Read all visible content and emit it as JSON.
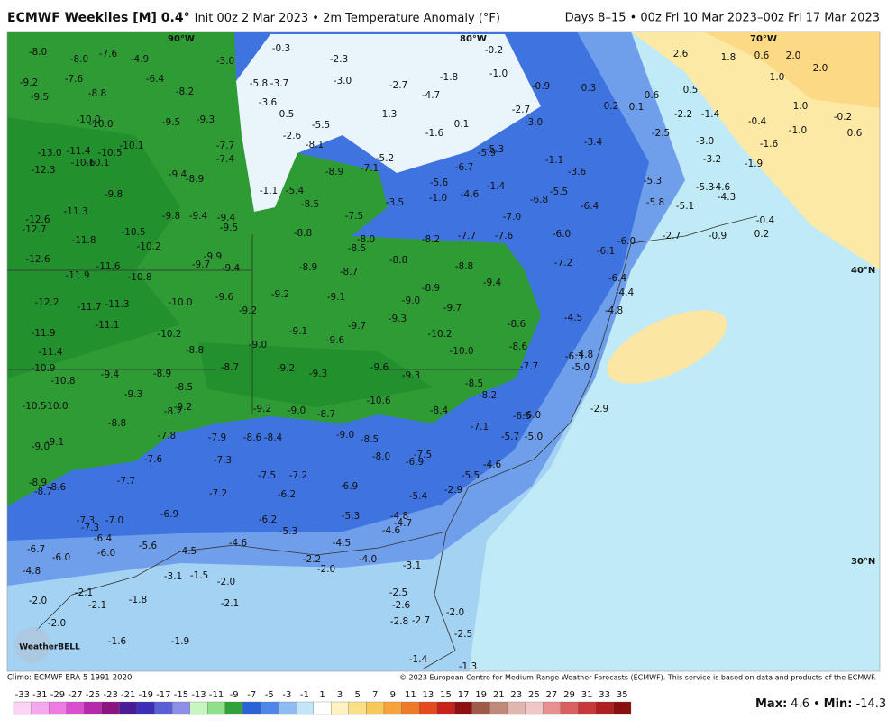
{
  "header": {
    "title": "ECMWF Weeklies [M] 0.4°",
    "init": "Init 00z 2 Mar 2023 • 2m Temperature Anomaly (°F)",
    "valid": "Days 8–15 • 00z Fri 10 Mar 2023–00z Fri 17 Mar 2023"
  },
  "map": {
    "longitude_labels": [
      "90°W",
      "80°W",
      "70°W"
    ],
    "latitude_labels": [
      "40°N",
      "30°N"
    ],
    "station_values": [
      "-8.0",
      "-8.0",
      "-7.6",
      "-4.9",
      "-3.0",
      "-0.3",
      "-2.3",
      "-0.2",
      "2.6",
      "1.8",
      "0.6",
      "2.0",
      "-9.2",
      "-7.6",
      "-6.4",
      "-5.8",
      "-3.7",
      "-3.0",
      "-2.7",
      "-1.8",
      "-1.0",
      "-0.9",
      "0.3",
      "2.0",
      "1.0",
      "0.5",
      "-9.5",
      "-8.8",
      "-8.2",
      "-3.6",
      "-4.7",
      "-2.7",
      "0.2",
      "0.1",
      "0.6",
      "1.0",
      "-10.0",
      "-10.0",
      "-9.5",
      "-9.3",
      "0.5",
      "-5.5",
      "1.3",
      "0.1",
      "-3.0",
      "-2.2",
      "-1.4",
      "-0.4",
      "-1.0",
      "-0.2",
      "0.6",
      "-10.1",
      "-7.7",
      "-2.6",
      "-8.1",
      "-1.6",
      "-5.3",
      "-3.4",
      "-2.5",
      "-3.0",
      "-1.6",
      "-13.0",
      "-11.4",
      "-10.5",
      "-7.4",
      "-5.2",
      "-7.1",
      "-6.7",
      "-5.9",
      "-1.1",
      "-3.6",
      "-3.2",
      "-1.9",
      "-12.3",
      "-10.6",
      "-10.1",
      "-9.4",
      "-8.9",
      "-8.9",
      "-5.6",
      "-5.3",
      "-9.8",
      "-1.1",
      "-5.4",
      "-3.5",
      "-1.0",
      "-4.6",
      "-1.4",
      "-5.5",
      "-6.8",
      "-5.3",
      "-4.6",
      "-4.3",
      "-11.3",
      "-9.8",
      "-9.4",
      "-9.4",
      "-8.5",
      "-7.5",
      "-7.0",
      "-6.4",
      "-5.8",
      "-5.1",
      "-12.6",
      "-12.7",
      "-10.5",
      "-9.5",
      "-8.8",
      "-8.0",
      "-8.2",
      "-7.7",
      "-7.6",
      "-6.0",
      "-6.0",
      "-2.7",
      "-0.9",
      "-0.4",
      "0.2",
      "-11.8",
      "-10.2",
      "-8.5",
      "-6.1",
      "-12.6",
      "-9.9",
      "-9.7",
      "-9.4",
      "-8.9",
      "-8.8",
      "-8.8",
      "-7.2",
      "-11.9",
      "-11.6",
      "-10.8",
      "-8.7",
      "-6.4",
      "-8.9",
      "-9.4",
      "-4.4",
      "-12.2",
      "-11.7",
      "-11.3",
      "-10.0",
      "-9.6",
      "-9.2",
      "-9.1",
      "-9.0",
      "-9.7",
      "-9.2",
      "-8.6",
      "-4.5",
      "-11.1",
      "-11.9",
      "-10.2",
      "-9.1",
      "-9.7",
      "-9.3",
      "-9.6",
      "-10.2",
      "-4.8",
      "-11.4",
      "-8.8",
      "-9.0",
      "-10.0",
      "-8.6",
      "-6.3",
      "-4.8",
      "-10.9",
      "-9.4",
      "-8.9",
      "-8.7",
      "-9.2",
      "-9.3",
      "-9.6",
      "-9.3",
      "-7.7",
      "-5.0",
      "-10.8",
      "-9.3",
      "-8.5",
      "-8.5",
      "-8.2",
      "-10.6",
      "-10.5",
      "-10.0",
      "-9.2",
      "-8.2",
      "-9.2",
      "-9.0",
      "-8.7",
      "-8.4",
      "-6.5",
      "-6.0",
      "-2.9",
      "-8.8",
      "-7.1",
      "-7.8",
      "-7.9",
      "-8.6",
      "-8.4",
      "-9.0",
      "-8.5",
      "-5.7",
      "-5.0",
      "-9.0",
      "-9.1",
      "-7.6",
      "-7.3",
      "-8.0",
      "-7.5",
      "-6.9",
      "-4.6",
      "-7.7",
      "-8.9",
      "-8.7",
      "-8.6",
      "-7.5",
      "-7.2",
      "-5.5",
      "-7.2",
      "-6.2",
      "-6.9",
      "-2.9",
      "-5.4",
      "-6.9",
      "-7.3",
      "-7.3",
      "-7.0",
      "-6.2",
      "-5.3",
      "-4.8",
      "-4.7",
      "-4.6",
      "-5.3",
      "-6.4",
      "-5.6",
      "-4.5",
      "-4.6",
      "-4.5",
      "-6.7",
      "-6.0",
      "-6.0",
      "-2.2",
      "-2.0",
      "-4.0",
      "-3.1",
      "-4.8",
      "-3.1",
      "-1.5",
      "-2.0",
      "-2.0",
      "-2.1",
      "-2.1",
      "-1.8",
      "-2.1",
      "-2.5",
      "-2.6",
      "-2.7",
      "-2.8",
      "-2.0",
      "-2.0",
      "-2.5",
      "-1.6",
      "-1.9",
      "-1.4",
      "-1.3"
    ]
  },
  "footer": {
    "climo": "Climo: ECMWF ERA-5 1991-2020",
    "copyright": "© 2023 European Centre for Medium-Range Weather Forecasts (ECMWF). This service is based on data and products of the ECMWF.",
    "logo": "WeatherBELL"
  },
  "colorbar": {
    "ticks": [
      -33,
      -31,
      -29,
      -27,
      -25,
      -23,
      -21,
      -19,
      -17,
      -15,
      -13,
      -11,
      -9,
      -7,
      -5,
      -3,
      -1,
      1,
      3,
      5,
      7,
      9,
      11,
      13,
      15,
      17,
      19,
      21,
      23,
      25,
      27,
      29,
      31,
      33,
      35
    ],
    "colors": [
      "#fbd3f5",
      "#f5a8ee",
      "#ee7be2",
      "#d94fcf",
      "#b42aa8",
      "#8a1480",
      "#4a1d96",
      "#3b2fb8",
      "#5a5fd6",
      "#8c8ee8",
      "#c8f5c0",
      "#8ee08a",
      "#2fa33a",
      "#2a62d8",
      "#4f86e8",
      "#8cbcf2",
      "#c2e6f8",
      "#ffffff",
      "#fdf2c0",
      "#fbe08a",
      "#f8c95a",
      "#f5a33a",
      "#ef7a2a",
      "#e44a1e",
      "#c8201a",
      "#8f1010",
      "#a05a4a",
      "#c08a7a",
      "#e0b8b0",
      "#f0c8c8",
      "#e89090",
      "#d86060",
      "#c83a3a",
      "#b02020",
      "#8a1010"
    ]
  },
  "stats": {
    "max_label": "Max:",
    "max": 4.6,
    "separator": "•",
    "min_label": "Min:",
    "min": -14.3
  }
}
